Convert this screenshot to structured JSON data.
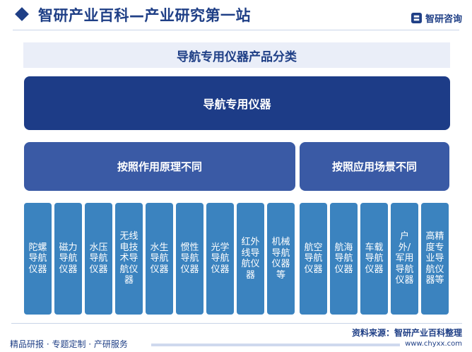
{
  "header": {
    "title": "智研产业百科—产业研究第一站",
    "brand_name": "智研咨询"
  },
  "subtitle": "导航专用仪器产品分类",
  "root": "导航专用仪器",
  "categories": [
    "按照作用原理不同",
    "按照应用场景不同"
  ],
  "principle_items": [
    "陀螺导航仪器",
    "磁力导航仪器",
    "水压导航仪器",
    "无线电技术导航仪器",
    "水生导航仪器",
    "惯性导航仪器",
    "光学导航仪器",
    "红外线导航仪器",
    "机械导航仪器等"
  ],
  "scenario_items": [
    "航空导航仪器",
    "航海导航仪器",
    "车载导航仪器",
    "户外/军用导航仪器",
    "高精度专业导航仪器等"
  ],
  "footer": {
    "source": "资料来源：智研产业百科整理",
    "tagline": "精品研报 · 专题定制 · 产研服务",
    "url": "www.chyxx.com"
  },
  "colors": {
    "navy": "#1d3c87",
    "category": "#3a5aa5",
    "leaf": "#3b83bf",
    "band": "#eaeef8"
  }
}
